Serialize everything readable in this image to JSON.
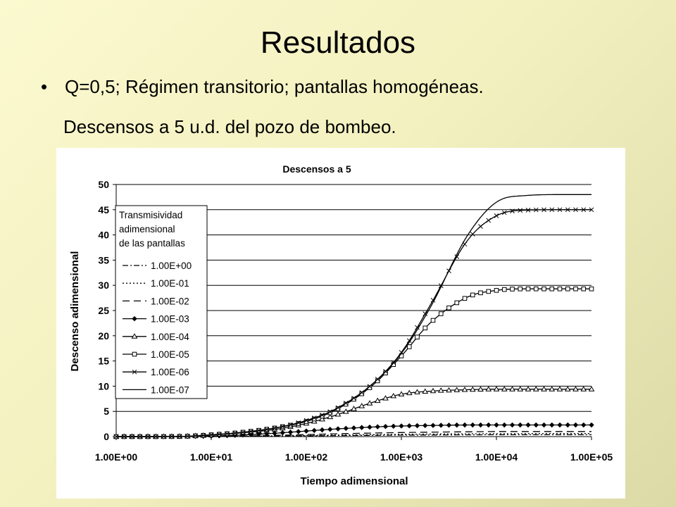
{
  "slide": {
    "title": "Resultados",
    "bullet": "Q=0,5; Régimen transitorio; pantallas homogéneas.",
    "subtitle": "Descensos a 5 u.d. del pozo de bombeo."
  },
  "chart_data": {
    "type": "line",
    "title": "Descensos a 5",
    "xlabel": "Tiempo adimensional",
    "ylabel": "Descenso adimensional",
    "x_scale": "log",
    "xlim": [
      1,
      100000
    ],
    "ylim": [
      0,
      50
    ],
    "x_ticks": [
      "1.00E+00",
      "1.00E+01",
      "1.00E+02",
      "1.00E+03",
      "1.00E+04",
      "1.00E+05"
    ],
    "y_ticks": [
      "0",
      "5",
      "10",
      "15",
      "20",
      "25",
      "30",
      "35",
      "40",
      "45",
      "50"
    ],
    "grid": "horizontal",
    "legend_title_lines": [
      "Transmisividad",
      "adimensional",
      "de las pantallas"
    ],
    "legend_position": "left",
    "x": [
      1,
      2,
      5,
      10,
      20,
      50,
      100,
      200,
      500,
      1000,
      2000,
      5000,
      10000,
      20000,
      50000,
      100000
    ],
    "series": [
      {
        "name": "1.00E+00",
        "line": "dash-dot",
        "marker": "none",
        "values": [
          0,
          0,
          0,
          0.02,
          0.05,
          0.1,
          0.15,
          0.2,
          0.25,
          0.3,
          0.32,
          0.35,
          0.36,
          0.37,
          0.37,
          0.37
        ]
      },
      {
        "name": "1.00E-01",
        "line": "dotted",
        "marker": "none",
        "values": [
          0,
          0,
          0,
          0.03,
          0.07,
          0.15,
          0.22,
          0.3,
          0.38,
          0.45,
          0.5,
          0.55,
          0.57,
          0.58,
          0.6,
          0.6
        ]
      },
      {
        "name": "1.00E-02",
        "line": "dashed",
        "marker": "none",
        "values": [
          0,
          0,
          0.01,
          0.05,
          0.1,
          0.25,
          0.4,
          0.55,
          0.7,
          0.8,
          0.88,
          0.95,
          1.0,
          1.0,
          1.0,
          1.0
        ]
      },
      {
        "name": "1.00E-03",
        "line": "solid",
        "marker": "diamond",
        "values": [
          0,
          0,
          0.02,
          0.1,
          0.3,
          0.7,
          1.1,
          1.5,
          1.9,
          2.1,
          2.2,
          2.3,
          2.3,
          2.3,
          2.3,
          2.3
        ]
      },
      {
        "name": "1.00E-04",
        "line": "solid",
        "marker": "triangle",
        "values": [
          0,
          0,
          0.05,
          0.3,
          0.7,
          1.5,
          2.6,
          4.2,
          6.8,
          8.4,
          9.0,
          9.3,
          9.4,
          9.4,
          9.4,
          9.4
        ]
      },
      {
        "name": "1.00E-05",
        "line": "solid",
        "marker": "square",
        "values": [
          0,
          0,
          0.05,
          0.35,
          0.8,
          1.8,
          3.0,
          5.2,
          10.2,
          16.0,
          22.5,
          27.7,
          29.0,
          29.3,
          29.3,
          29.3
        ]
      },
      {
        "name": "1.00E-06",
        "line": "solid",
        "marker": "x",
        "values": [
          0,
          0,
          0.05,
          0.35,
          0.8,
          1.8,
          3.2,
          5.4,
          10.5,
          16.7,
          26.0,
          39.0,
          43.8,
          44.9,
          45.0,
          45.0
        ]
      },
      {
        "name": "1.00E-07",
        "line": "solid",
        "marker": "none",
        "values": [
          0,
          0,
          0.05,
          0.35,
          0.8,
          1.8,
          3.2,
          5.4,
          10.5,
          16.5,
          25.5,
          40.0,
          46.5,
          47.8,
          48.0,
          48.0
        ]
      }
    ]
  }
}
